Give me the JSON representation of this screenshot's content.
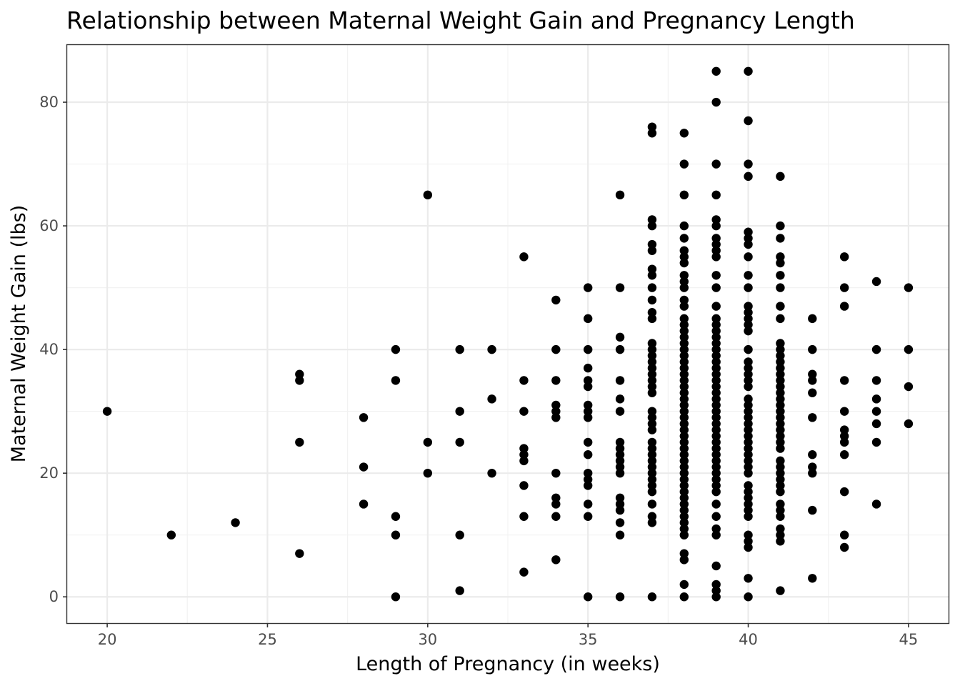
{
  "chart_data": {
    "type": "scatter",
    "title": "Relationship between Maternal Weight Gain and Pregnancy Length",
    "xlabel": "Length of Pregnancy (in weeks)",
    "ylabel": "Maternal Weight Gain (lbs)",
    "xlim": [
      18.75,
      46.25
    ],
    "ylim": [
      -4.25,
      89.25
    ],
    "x_ticks": [
      20,
      25,
      30,
      35,
      40,
      45
    ],
    "y_ticks": [
      0,
      20,
      40,
      60,
      80
    ],
    "grid": true,
    "point_color": "#000000",
    "points": [
      [
        20,
        30
      ],
      [
        22,
        10
      ],
      [
        24,
        12
      ],
      [
        26,
        36
      ],
      [
        26,
        35
      ],
      [
        26,
        25
      ],
      [
        26,
        7
      ],
      [
        28,
        29
      ],
      [
        28,
        21
      ],
      [
        28,
        15
      ],
      [
        29,
        40
      ],
      [
        29,
        35
      ],
      [
        29,
        13
      ],
      [
        29,
        10
      ],
      [
        29,
        0
      ],
      [
        30,
        65
      ],
      [
        30,
        25
      ],
      [
        30,
        20
      ],
      [
        31,
        40
      ],
      [
        31,
        30
      ],
      [
        31,
        25
      ],
      [
        31,
        10
      ],
      [
        31,
        1
      ],
      [
        32,
        40
      ],
      [
        32,
        32
      ],
      [
        32,
        20
      ],
      [
        33,
        55
      ],
      [
        33,
        35
      ],
      [
        33,
        30
      ],
      [
        33,
        24
      ],
      [
        33,
        23
      ],
      [
        33,
        22
      ],
      [
        33,
        18
      ],
      [
        33,
        13
      ],
      [
        33,
        4
      ],
      [
        34,
        48
      ],
      [
        34,
        40
      ],
      [
        34,
        35
      ],
      [
        34,
        31
      ],
      [
        34,
        30
      ],
      [
        34,
        29
      ],
      [
        34,
        20
      ],
      [
        34,
        16
      ],
      [
        34,
        15
      ],
      [
        34,
        13
      ],
      [
        34,
        6
      ],
      [
        35,
        50
      ],
      [
        35,
        45
      ],
      [
        35,
        40
      ],
      [
        35,
        37
      ],
      [
        35,
        35
      ],
      [
        35,
        34
      ],
      [
        35,
        31
      ],
      [
        35,
        30
      ],
      [
        35,
        29
      ],
      [
        35,
        25
      ],
      [
        35,
        23
      ],
      [
        35,
        20
      ],
      [
        35,
        19
      ],
      [
        35,
        18
      ],
      [
        35,
        15
      ],
      [
        35,
        13
      ],
      [
        35,
        0
      ],
      [
        36,
        65
      ],
      [
        36,
        50
      ],
      [
        36,
        42
      ],
      [
        36,
        40
      ],
      [
        36,
        35
      ],
      [
        36,
        32
      ],
      [
        36,
        30
      ],
      [
        36,
        25
      ],
      [
        36,
        24
      ],
      [
        36,
        23
      ],
      [
        36,
        22
      ],
      [
        36,
        21
      ],
      [
        36,
        20
      ],
      [
        36,
        16
      ],
      [
        36,
        15
      ],
      [
        36,
        14
      ],
      [
        36,
        12
      ],
      [
        36,
        10
      ],
      [
        36,
        0
      ],
      [
        37,
        76
      ],
      [
        37,
        75
      ],
      [
        37,
        61
      ],
      [
        37,
        60
      ],
      [
        37,
        57
      ],
      [
        37,
        56
      ],
      [
        37,
        53
      ],
      [
        37,
        52
      ],
      [
        37,
        50
      ],
      [
        37,
        48
      ],
      [
        37,
        46
      ],
      [
        37,
        45
      ],
      [
        37,
        41
      ],
      [
        37,
        40
      ],
      [
        37,
        39
      ],
      [
        37,
        38
      ],
      [
        37,
        37
      ],
      [
        37,
        36
      ],
      [
        37,
        35
      ],
      [
        37,
        34
      ],
      [
        37,
        33
      ],
      [
        37,
        30
      ],
      [
        37,
        29
      ],
      [
        37,
        28
      ],
      [
        37,
        27
      ],
      [
        37,
        25
      ],
      [
        37,
        24
      ],
      [
        37,
        23
      ],
      [
        37,
        22
      ],
      [
        37,
        21
      ],
      [
        37,
        20
      ],
      [
        37,
        19
      ],
      [
        37,
        18
      ],
      [
        37,
        17
      ],
      [
        37,
        15
      ],
      [
        37,
        13
      ],
      [
        37,
        12
      ],
      [
        37,
        0
      ],
      [
        38,
        75
      ],
      [
        38,
        70
      ],
      [
        38,
        65
      ],
      [
        38,
        60
      ],
      [
        38,
        58
      ],
      [
        38,
        56
      ],
      [
        38,
        55
      ],
      [
        38,
        54
      ],
      [
        38,
        52
      ],
      [
        38,
        51
      ],
      [
        38,
        50
      ],
      [
        38,
        48
      ],
      [
        38,
        47
      ],
      [
        38,
        45
      ],
      [
        38,
        44
      ],
      [
        38,
        43
      ],
      [
        38,
        42
      ],
      [
        38,
        41
      ],
      [
        38,
        40
      ],
      [
        38,
        39
      ],
      [
        38,
        38
      ],
      [
        38,
        37
      ],
      [
        38,
        36
      ],
      [
        38,
        35
      ],
      [
        38,
        34
      ],
      [
        38,
        33
      ],
      [
        38,
        32
      ],
      [
        38,
        31
      ],
      [
        38,
        30
      ],
      [
        38,
        29
      ],
      [
        38,
        28
      ],
      [
        38,
        27
      ],
      [
        38,
        26
      ],
      [
        38,
        25
      ],
      [
        38,
        24
      ],
      [
        38,
        23
      ],
      [
        38,
        22
      ],
      [
        38,
        21
      ],
      [
        38,
        20
      ],
      [
        38,
        19
      ],
      [
        38,
        18
      ],
      [
        38,
        17
      ],
      [
        38,
        16
      ],
      [
        38,
        15
      ],
      [
        38,
        14
      ],
      [
        38,
        13
      ],
      [
        38,
        12
      ],
      [
        38,
        11
      ],
      [
        38,
        10
      ],
      [
        38,
        7
      ],
      [
        38,
        6
      ],
      [
        38,
        2
      ],
      [
        38,
        0
      ],
      [
        39,
        85
      ],
      [
        39,
        80
      ],
      [
        39,
        70
      ],
      [
        39,
        65
      ],
      [
        39,
        61
      ],
      [
        39,
        60
      ],
      [
        39,
        58
      ],
      [
        39,
        57
      ],
      [
        39,
        56
      ],
      [
        39,
        55
      ],
      [
        39,
        52
      ],
      [
        39,
        50
      ],
      [
        39,
        47
      ],
      [
        39,
        45
      ],
      [
        39,
        44
      ],
      [
        39,
        43
      ],
      [
        39,
        42
      ],
      [
        39,
        41
      ],
      [
        39,
        40
      ],
      [
        39,
        39
      ],
      [
        39,
        38
      ],
      [
        39,
        37
      ],
      [
        39,
        36
      ],
      [
        39,
        35
      ],
      [
        39,
        34
      ],
      [
        39,
        33
      ],
      [
        39,
        32
      ],
      [
        39,
        31
      ],
      [
        39,
        30
      ],
      [
        39,
        29
      ],
      [
        39,
        28
      ],
      [
        39,
        27
      ],
      [
        39,
        26
      ],
      [
        39,
        25
      ],
      [
        39,
        24
      ],
      [
        39,
        23
      ],
      [
        39,
        22
      ],
      [
        39,
        21
      ],
      [
        39,
        20
      ],
      [
        39,
        19
      ],
      [
        39,
        18
      ],
      [
        39,
        17
      ],
      [
        39,
        15
      ],
      [
        39,
        13
      ],
      [
        39,
        11
      ],
      [
        39,
        10
      ],
      [
        39,
        5
      ],
      [
        39,
        2
      ],
      [
        39,
        1
      ],
      [
        39,
        0
      ],
      [
        40,
        85
      ],
      [
        40,
        77
      ],
      [
        40,
        70
      ],
      [
        40,
        68
      ],
      [
        40,
        59
      ],
      [
        40,
        58
      ],
      [
        40,
        57
      ],
      [
        40,
        55
      ],
      [
        40,
        52
      ],
      [
        40,
        50
      ],
      [
        40,
        47
      ],
      [
        40,
        46
      ],
      [
        40,
        45
      ],
      [
        40,
        44
      ],
      [
        40,
        43
      ],
      [
        40,
        40
      ],
      [
        40,
        38
      ],
      [
        40,
        37
      ],
      [
        40,
        36
      ],
      [
        40,
        35
      ],
      [
        40,
        34
      ],
      [
        40,
        32
      ],
      [
        40,
        31
      ],
      [
        40,
        30
      ],
      [
        40,
        29
      ],
      [
        40,
        28
      ],
      [
        40,
        27
      ],
      [
        40,
        26
      ],
      [
        40,
        25
      ],
      [
        40,
        24
      ],
      [
        40,
        23
      ],
      [
        40,
        22
      ],
      [
        40,
        21
      ],
      [
        40,
        20
      ],
      [
        40,
        18
      ],
      [
        40,
        17
      ],
      [
        40,
        16
      ],
      [
        40,
        15
      ],
      [
        40,
        14
      ],
      [
        40,
        13
      ],
      [
        40,
        10
      ],
      [
        40,
        9
      ],
      [
        40,
        8
      ],
      [
        40,
        3
      ],
      [
        40,
        0
      ],
      [
        41,
        68
      ],
      [
        41,
        60
      ],
      [
        41,
        58
      ],
      [
        41,
        55
      ],
      [
        41,
        54
      ],
      [
        41,
        52
      ],
      [
        41,
        50
      ],
      [
        41,
        47
      ],
      [
        41,
        45
      ],
      [
        41,
        41
      ],
      [
        41,
        40
      ],
      [
        41,
        39
      ],
      [
        41,
        38
      ],
      [
        41,
        37
      ],
      [
        41,
        36
      ],
      [
        41,
        35
      ],
      [
        41,
        34
      ],
      [
        41,
        33
      ],
      [
        41,
        32
      ],
      [
        41,
        31
      ],
      [
        41,
        30
      ],
      [
        41,
        29
      ],
      [
        41,
        28
      ],
      [
        41,
        27
      ],
      [
        41,
        26
      ],
      [
        41,
        25
      ],
      [
        41,
        24
      ],
      [
        41,
        22
      ],
      [
        41,
        21
      ],
      [
        41,
        20
      ],
      [
        41,
        19
      ],
      [
        41,
        18
      ],
      [
        41,
        17
      ],
      [
        41,
        15
      ],
      [
        41,
        14
      ],
      [
        41,
        13
      ],
      [
        41,
        11
      ],
      [
        41,
        10
      ],
      [
        41,
        9
      ],
      [
        41,
        1
      ],
      [
        42,
        45
      ],
      [
        42,
        40
      ],
      [
        42,
        36
      ],
      [
        42,
        35
      ],
      [
        42,
        33
      ],
      [
        42,
        29
      ],
      [
        42,
        23
      ],
      [
        42,
        21
      ],
      [
        42,
        20
      ],
      [
        42,
        14
      ],
      [
        42,
        3
      ],
      [
        43,
        55
      ],
      [
        43,
        50
      ],
      [
        43,
        47
      ],
      [
        43,
        35
      ],
      [
        43,
        30
      ],
      [
        43,
        27
      ],
      [
        43,
        26
      ],
      [
        43,
        25
      ],
      [
        43,
        23
      ],
      [
        43,
        17
      ],
      [
        43,
        10
      ],
      [
        43,
        8
      ],
      [
        44,
        51
      ],
      [
        44,
        40
      ],
      [
        44,
        35
      ],
      [
        44,
        32
      ],
      [
        44,
        30
      ],
      [
        44,
        28
      ],
      [
        44,
        25
      ],
      [
        44,
        15
      ],
      [
        45,
        50
      ],
      [
        45,
        40
      ],
      [
        45,
        34
      ],
      [
        45,
        28
      ]
    ]
  }
}
